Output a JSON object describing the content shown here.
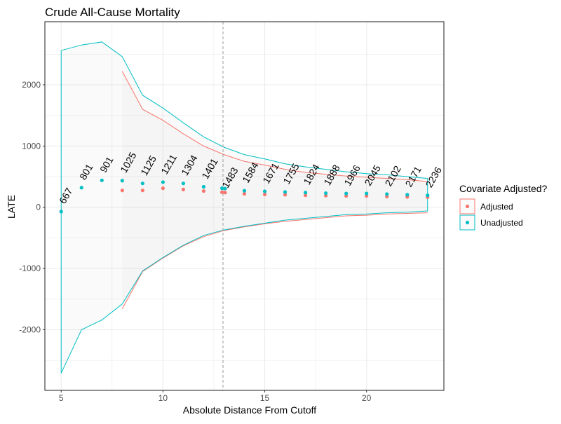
{
  "chart_data": {
    "type": "line",
    "title": "Crude All-Cause Mortality",
    "xlabel": "Absolute Distance From Cutoff",
    "ylabel": "LATE",
    "xlim": [
      4.2,
      23.8
    ],
    "ylim": [
      -2990,
      3030
    ],
    "x_ticks": [
      5,
      10,
      15,
      20
    ],
    "y_ticks": [
      -2000,
      -1000,
      0,
      1000,
      2000
    ],
    "grid": true,
    "vline": {
      "x": 12.95,
      "style": "dashed"
    },
    "legend": {
      "title": "Covariate Adjusted?",
      "position": "right",
      "entries": [
        {
          "label": "Adjusted",
          "color": "#F8766D"
        },
        {
          "label": "Unadjusted",
          "color": "#00BFC4"
        }
      ]
    },
    "sample_size_labels": [
      {
        "x": 5,
        "label": "667"
      },
      {
        "x": 6,
        "label": "801"
      },
      {
        "x": 7,
        "label": "901"
      },
      {
        "x": 8,
        "label": "1025"
      },
      {
        "x": 9,
        "label": "1125"
      },
      {
        "x": 10,
        "label": "1211"
      },
      {
        "x": 11,
        "label": "1304"
      },
      {
        "x": 12,
        "label": "1401"
      },
      {
        "x": 13,
        "label": "1483"
      },
      {
        "x": 14,
        "label": "1584"
      },
      {
        "x": 15,
        "label": "1671"
      },
      {
        "x": 16,
        "label": "1755"
      },
      {
        "x": 17,
        "label": "1824"
      },
      {
        "x": 18,
        "label": "1888"
      },
      {
        "x": 19,
        "label": "1966"
      },
      {
        "x": 20,
        "label": "2045"
      },
      {
        "x": 21,
        "label": "2102"
      },
      {
        "x": 22,
        "label": "2171"
      },
      {
        "x": 23,
        "label": "2236"
      }
    ],
    "series": [
      {
        "name": "Adjusted",
        "color": "#F8766D",
        "points": [
          {
            "x": 8,
            "y": 275
          },
          {
            "x": 9,
            "y": 275
          },
          {
            "x": 10,
            "y": 310
          },
          {
            "x": 11,
            "y": 290
          },
          {
            "x": 12,
            "y": 265
          },
          {
            "x": 12.9,
            "y": 245
          },
          {
            "x": 13.05,
            "y": 240
          },
          {
            "x": 14,
            "y": 220
          },
          {
            "x": 15,
            "y": 210
          },
          {
            "x": 16,
            "y": 205
          },
          {
            "x": 17,
            "y": 195
          },
          {
            "x": 18,
            "y": 190
          },
          {
            "x": 19,
            "y": 185
          },
          {
            "x": 20,
            "y": 185
          },
          {
            "x": 21,
            "y": 175
          },
          {
            "x": 22,
            "y": 170
          },
          {
            "x": 23,
            "y": 165
          }
        ],
        "upper": [
          [
            8,
            2220
          ],
          [
            9,
            1600
          ],
          [
            10,
            1420
          ],
          [
            11,
            1200
          ],
          [
            12,
            1000
          ],
          [
            13,
            860
          ],
          [
            14,
            750
          ],
          [
            15,
            690
          ],
          [
            16,
            620
          ],
          [
            17,
            570
          ],
          [
            18,
            540
          ],
          [
            19,
            510
          ],
          [
            20,
            490
          ],
          [
            21,
            470
          ],
          [
            22,
            450
          ],
          [
            23,
            420
          ]
        ],
        "lower": [
          [
            8,
            -1660
          ],
          [
            9,
            -1050
          ],
          [
            10,
            -830
          ],
          [
            11,
            -630
          ],
          [
            12,
            -480
          ],
          [
            13,
            -380
          ],
          [
            14,
            -320
          ],
          [
            15,
            -270
          ],
          [
            16,
            -230
          ],
          [
            17,
            -200
          ],
          [
            18,
            -170
          ],
          [
            19,
            -140
          ],
          [
            20,
            -130
          ],
          [
            21,
            -110
          ],
          [
            22,
            -100
          ],
          [
            23,
            -90
          ]
        ]
      },
      {
        "name": "Unadjusted",
        "color": "#00BFC4",
        "points": [
          {
            "x": 5,
            "y": -70
          },
          {
            "x": 6,
            "y": 320
          },
          {
            "x": 7,
            "y": 440
          },
          {
            "x": 8,
            "y": 435
          },
          {
            "x": 9,
            "y": 390
          },
          {
            "x": 10,
            "y": 410
          },
          {
            "x": 11,
            "y": 390
          },
          {
            "x": 12,
            "y": 335
          },
          {
            "x": 12.9,
            "y": 310
          },
          {
            "x": 13.05,
            "y": 305
          },
          {
            "x": 14,
            "y": 270
          },
          {
            "x": 15,
            "y": 260
          },
          {
            "x": 16,
            "y": 250
          },
          {
            "x": 17,
            "y": 240
          },
          {
            "x": 18,
            "y": 230
          },
          {
            "x": 19,
            "y": 225
          },
          {
            "x": 20,
            "y": 225
          },
          {
            "x": 21,
            "y": 215
          },
          {
            "x": 22,
            "y": 205
          },
          {
            "x": 23,
            "y": 195
          }
        ],
        "upper": [
          [
            5,
            2560
          ],
          [
            6,
            2650
          ],
          [
            7,
            2700
          ],
          [
            8,
            2460
          ],
          [
            9,
            1830
          ],
          [
            10,
            1620
          ],
          [
            11,
            1380
          ],
          [
            12,
            1150
          ],
          [
            13,
            980
          ],
          [
            14,
            860
          ],
          [
            15,
            790
          ],
          [
            16,
            710
          ],
          [
            17,
            660
          ],
          [
            18,
            620
          ],
          [
            19,
            580
          ],
          [
            20,
            550
          ],
          [
            21,
            530
          ],
          [
            22,
            500
          ],
          [
            23,
            470
          ]
        ],
        "lower": [
          [
            5,
            -2710
          ],
          [
            6,
            -2000
          ],
          [
            7,
            -1840
          ],
          [
            8,
            -1580
          ],
          [
            9,
            -1040
          ],
          [
            10,
            -820
          ],
          [
            11,
            -620
          ],
          [
            12,
            -460
          ],
          [
            13,
            -370
          ],
          [
            14,
            -310
          ],
          [
            15,
            -260
          ],
          [
            16,
            -210
          ],
          [
            17,
            -180
          ],
          [
            18,
            -150
          ],
          [
            19,
            -120
          ],
          [
            20,
            -110
          ],
          [
            21,
            -90
          ],
          [
            22,
            -80
          ],
          [
            23,
            -60
          ]
        ]
      }
    ]
  }
}
